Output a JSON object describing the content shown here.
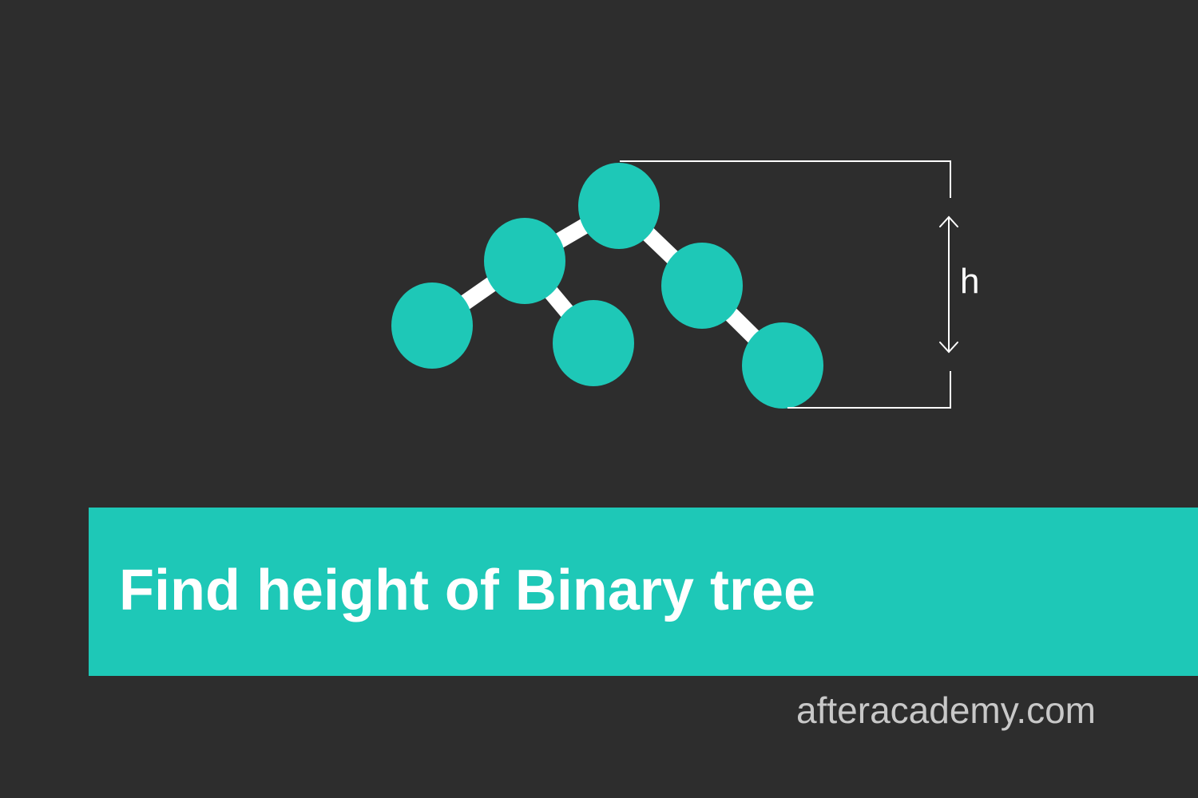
{
  "colors": {
    "background": "#2d2d2d",
    "accent": "#1ec8b7",
    "edge": "#ffffff",
    "url_text": "#c8c8c8"
  },
  "diagram": {
    "height_label": "h",
    "node_count": 6,
    "edge_count": 5
  },
  "banner": {
    "title": "Find height of Binary tree"
  },
  "footer": {
    "site": "afteracademy.com"
  }
}
